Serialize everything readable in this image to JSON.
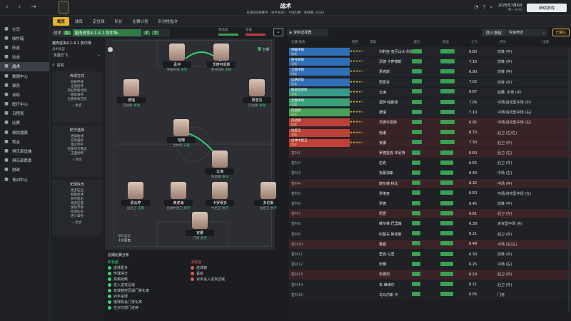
{
  "header": {
    "title": "战术",
    "subtitle": "在第6轮联赛中（对手名单）· 下场比赛：某联赛 (52天)",
    "date": "2025年7月6日",
    "day": "周一 9:00",
    "continue_label": "继续游戏"
  },
  "sidebar": {
    "items": [
      {
        "label": "主页",
        "icon": "home-icon"
      },
      {
        "label": "收件箱",
        "icon": "inbox-icon"
      },
      {
        "label": "阵容",
        "icon": "squad-icon"
      },
      {
        "label": "动态",
        "icon": "dynamics-icon"
      },
      {
        "label": "战术",
        "icon": "tactics-icon"
      },
      {
        "label": "数据中心",
        "icon": "data-icon"
      },
      {
        "label": "球员",
        "icon": "player-icon"
      },
      {
        "label": "训练",
        "icon": "training-icon"
      },
      {
        "label": "医疗中心",
        "icon": "medical-icon"
      },
      {
        "label": "日程表",
        "icon": "calendar-icon"
      },
      {
        "label": "比赛",
        "icon": "match-icon"
      },
      {
        "label": "球探搜索",
        "icon": "scouting-icon"
      },
      {
        "label": "转会",
        "icon": "transfer-icon"
      },
      {
        "label": "俱乐部设施",
        "icon": "facility-icon"
      },
      {
        "label": "俱乐部愿景",
        "icon": "vision-icon"
      },
      {
        "label": "财政",
        "icon": "finance-icon"
      },
      {
        "label": "青训中心",
        "icon": "youth-icon"
      }
    ]
  },
  "tabs": [
    {
      "label": "概览",
      "active": true
    },
    {
      "label": "球员"
    },
    {
      "label": "定位球"
    },
    {
      "label": "队长"
    },
    {
      "label": "比赛计划"
    },
    {
      "label": "针对性指令"
    }
  ],
  "tactic_bar": {
    "tactic_label": "战术",
    "tactic_num_1": "1",
    "tactic_name": "瘦肉进攻4-1-4-1 防中场...",
    "tactic_num_2": "2",
    "tactic_num_3": "3",
    "familiarity_label": "熟悉度",
    "fitness_label": "体能",
    "edit_label": "复制选择器",
    "field_view_label": "两人督促",
    "quick_select_label": "快速筛选",
    "confirm_label": "已确认"
  },
  "left_panel": {
    "formation_label": "瘦肉进攻4-1-4-1 防中场",
    "mentality_label": "战术类型",
    "mentality_value": "反震方飞",
    "style_value": "进攻",
    "section1_title": "传球方式",
    "section1_items": [
      "较短传球",
      "让他投传",
      "较低传接比例",
      "随意离开",
      "主要进攻方向"
    ],
    "section2_title": "防守选择",
    "section2_items": [
      "更高防线",
      "较高逼抢",
      "阻止传中",
      "迫使对方靠边",
      "正面抢断"
    ],
    "section3_title": "无球队形",
    "section3_items": [
      "更多压迫",
      "积极抢球",
      "防守反击",
      "更多压逼",
      "加快节奏",
      "控球队形",
      "更少掌控"
    ],
    "more_label": "更多"
  },
  "pitch": {
    "analysis_label": "分析",
    "players": [
      {
        "name": "孟冲",
        "role": "突破中锋",
        "tag": "进攻"
      },
      {
        "name": "沃德可恩斯",
        "role": "防守前锋",
        "tag": "支援"
      },
      {
        "name": "德瑞",
        "role": "内边锋",
        "tag": "进攻"
      },
      {
        "name": "周雪芬",
        "role": "内边锋",
        "tag": "进攻"
      },
      {
        "name": "哈珊",
        "role": "全中场",
        "tag": "支援"
      },
      {
        "name": "云海",
        "role": "防后腰",
        "tag": "防守"
      },
      {
        "name": "梁云婷",
        "role": "边后卫",
        "tag": "支援"
      },
      {
        "name": "黄虎海",
        "role": "出球中后卫",
        "tag": "防守"
      },
      {
        "name": "卡罗穆多",
        "role": "中后卫",
        "tag": "防守"
      },
      {
        "name": "多伦斯",
        "role": "边后卫",
        "tag": "防守"
      },
      {
        "name": "安娜",
        "role": "门将",
        "tag": "防守"
      }
    ],
    "team_style_label": "球队类型",
    "team_style_value": "十分自由",
    "instructions_title": "近期比赛分析",
    "left_list_title": "积极面",
    "left_list": [
      "进球更多",
      "传球得分",
      "高频抢断",
      "进入进攻区域",
      "有效数控区域门将化率",
      "对手进球",
      "接球机会门将化率",
      "在对方部门连续"
    ],
    "right_list_title": "消极面",
    "right_list": [
      "进球被",
      "丢射",
      "对手进入进攻区域"
    ]
  },
  "selection": {
    "columns": [
      "位置/角色",
      "姓名",
      "年龄",
      "能力",
      "状态",
      "士气",
      "评分",
      "出场",
      "位置"
    ],
    "starters": [
      {
        "slot": "突破中锋",
        "sub": "进攻",
        "name": "刘利亚·亚历山大·科普斯",
        "color": "#2f6fb8",
        "score": "6.80",
        "pos": "前锋 (中)"
      },
      {
        "slot": "防守前锋",
        "sub": "支援",
        "name": "沃德·卡萨德斯",
        "color": "#2f6fb8",
        "score": "7.16",
        "pos": "前锋 (中)"
      },
      {
        "slot": "全能中锋",
        "sub": "进攻",
        "name": "贾克斯",
        "color": "#2f6fb8",
        "score": "6.90",
        "pos": "前锋 (中)"
      },
      {
        "slot": "边路前锋",
        "sub": "进攻",
        "name": "周雪芬",
        "color": "#2f6fb8",
        "score": "7.02",
        "pos": "前锋 (中)"
      },
      {
        "slot": "推进型组织",
        "sub": "进攻",
        "name": "云海",
        "color": "#3a9a8a",
        "score": "6.87",
        "pos": "后腰, 中场 (中)"
      },
      {
        "slot": "全能中场",
        "sub": "支援",
        "name": "莫萨·帕斯塔",
        "color": "#3aa07a",
        "score": "7.05",
        "pos": "中场/进攻型中场 (中)"
      },
      {
        "slot": "内边锋",
        "sub": "进攻",
        "name": "德瑞",
        "color": "#4aa05a",
        "score": "7.10",
        "pos": "中场/进攻型中场 (右)"
      },
      {
        "slot": "内边锋",
        "sub": "进攻",
        "name": "沃德可恩斯",
        "color": "#b8423a",
        "score": "6.95",
        "pos": "中场/进攻型中场 (右)"
      },
      {
        "slot": "边后卫",
        "sub": "支援",
        "name": "哈珊",
        "color": "#b8423a",
        "score": "6.70",
        "pos": "后卫 (左/右)"
      },
      {
        "slot": "出球中后卫",
        "sub": "防守",
        "name": "安娜",
        "color": "#c0403a",
        "score": "7.30",
        "pos": "后卫 (中)"
      }
    ],
    "subs": [
      {
        "slot": "替补1",
        "name": "罗德里克·本尼特",
        "score": "6.60",
        "pos": "后卫 (右)"
      },
      {
        "slot": "替补2",
        "name": "伯克",
        "score": "6.55",
        "pos": "后卫 (中)"
      },
      {
        "slot": "替补3",
        "name": "克蒙加斯",
        "score": "6.40",
        "pos": "中场 (右)"
      },
      {
        "slot": "替补4",
        "name": "勒尔德·科比",
        "score": "6.32",
        "pos": "中场 (中)"
      },
      {
        "slot": "替补5",
        "name": "罗维亚",
        "score": "6.50",
        "pos": "中场/进攻型中场 (左)"
      },
      {
        "slot": "替补6",
        "name": "罗德",
        "score": "6.45",
        "pos": "前锋 (中)"
      },
      {
        "slot": "替补7",
        "name": "周雪",
        "score": "6.61",
        "pos": "后卫 (左)"
      },
      {
        "slot": "替补8",
        "name": "维尔维·巴里森",
        "score": "6.38",
        "pos": "进攻型中场 (右)"
      },
      {
        "slot": "替补9",
        "name": "约瑟夫·阿克斯",
        "score": "6.21",
        "pos": "后卫 (中)"
      },
      {
        "slot": "替补10",
        "name": "曹鑫",
        "score": "6.48",
        "pos": "中场 (右/左)"
      },
      {
        "slot": "替补11",
        "name": "里克·马里",
        "score": "6.30",
        "pos": "前锋 (中)"
      },
      {
        "slot": "替补12",
        "name": "宋朝",
        "score": "6.25",
        "pos": "中场 (右)"
      },
      {
        "slot": "替补13",
        "name": "安德烈",
        "score": "6.19",
        "pos": "后卫 (中)"
      },
      {
        "slot": "替补14",
        "name": "本·维维尔",
        "score": "6.11",
        "pos": "后卫 (中)"
      },
      {
        "slot": "替补15",
        "name": "乌马尔斯·卡",
        "score": "6.05",
        "pos": "门将"
      }
    ]
  }
}
